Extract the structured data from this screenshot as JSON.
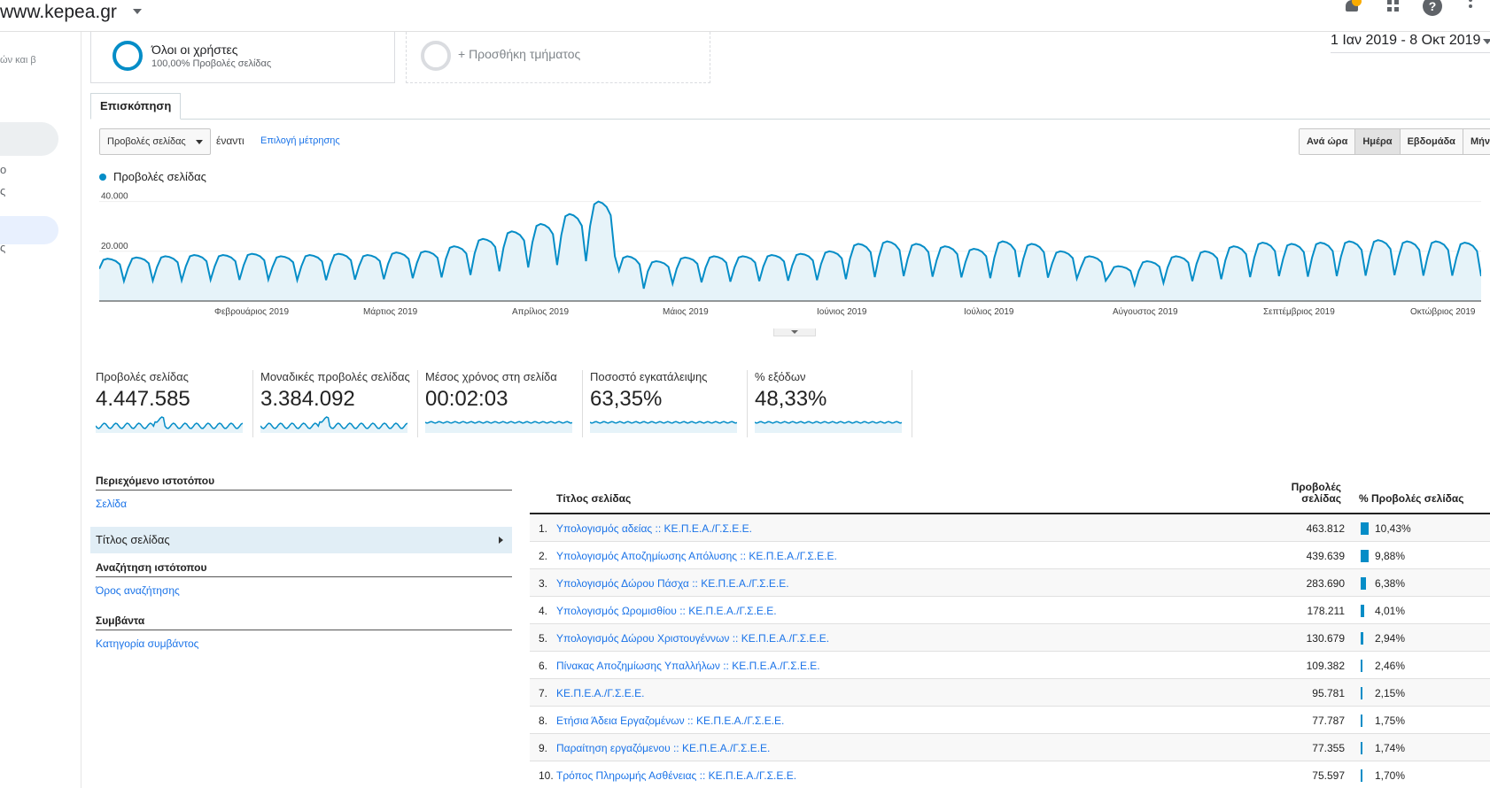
{
  "header": {
    "site": "www.kepea.gr"
  },
  "sidebar": {
    "fragment": "ών και β",
    "frag1": "o",
    "frag2": "ς",
    "frag3": "ς"
  },
  "segments": {
    "all_users": "Όλοι οι χρήστες",
    "all_users_sub": "100,00% Προβολές σελίδας",
    "add_segment": "+ Προσθήκη τμήματος"
  },
  "date_range": "1 Ιαν 2019 - 8 Οκτ 2019",
  "tab": "Επισκόπηση",
  "controls": {
    "metric": "Προβολές σελίδας",
    "vs": "έναντι",
    "choose_metric": "Επιλογή μέτρησης",
    "granularity": [
      "Ανά ώρα",
      "Ημέρα",
      "Εβδομάδα",
      "Μήνας"
    ]
  },
  "chart_data": {
    "type": "area",
    "series": [
      {
        "name": "Προβολές σελίδας",
        "color": "#058dc7"
      }
    ],
    "y_ticks": [
      "40.000",
      "20.000"
    ],
    "ylim": [
      0,
      42000
    ],
    "x_labels": [
      "Φεβρουάριος 2019",
      "Μάρτιος 2019",
      "Απρίλιος 2019",
      "Μάιος 2019",
      "Ιούνιος 2019",
      "Ιούλιος 2019",
      "Αύγουστος 2019",
      "Σεπτέμβριος 2019",
      "Οκτώβριος 2019"
    ],
    "weekly_peak": [
      17000,
      17500,
      18000,
      18500,
      18500,
      19000,
      18000,
      18500,
      19000,
      18500,
      19500,
      20000,
      22000,
      25000,
      28000,
      31000,
      35000,
      40000,
      18000,
      16000,
      17500,
      18000,
      18000,
      18500,
      19000,
      20000,
      23000,
      24000,
      23000,
      22000,
      21000,
      24000,
      23000,
      20000,
      18000,
      14000,
      16000,
      18000,
      20000,
      22000,
      23500,
      23000,
      23500,
      24000,
      24500,
      24000,
      24000,
      23500
    ],
    "weekly_low": [
      8000,
      8200,
      8300,
      8500,
      8500,
      8600,
      8400,
      8400,
      8600,
      8800,
      9200,
      9500,
      10500,
      12000,
      13500,
      14500,
      16000,
      18000,
      5000,
      7000,
      7500,
      7800,
      8000,
      8200,
      8400,
      8800,
      9600,
      10000,
      9800,
      9500,
      9200,
      9600,
      9400,
      9000,
      8200,
      6500,
      7300,
      8000,
      8800,
      9600,
      10000,
      9800,
      10000,
      10200,
      10400,
      10200,
      10200,
      10000
    ]
  },
  "scorecards": [
    {
      "label": "Προβολές σελίδας",
      "value": "4.447.585"
    },
    {
      "label": "Μοναδικές προβολές σελίδας",
      "value": "3.384.092"
    },
    {
      "label": "Μέσος χρόνος στη σελίδα",
      "value": "00:02:03"
    },
    {
      "label": "Ποσοστό εγκατάλειψης",
      "value": "63,35%"
    },
    {
      "label": "% εξόδων",
      "value": "48,33%"
    }
  ],
  "drilldown": {
    "site_content": "Περιεχόμενο ιστοτόπου",
    "page": "Σελίδα",
    "page_title": "Τίτλος σελίδας",
    "site_search": "Αναζήτηση ιστότοπου",
    "search_term": "Όρος αναζήτησης",
    "events": "Συμβάντα",
    "event_category": "Κατηγορία συμβάντος"
  },
  "table": {
    "col_title": "Τίτλος σελίδας",
    "col_pv_1": "Προβολές",
    "col_pv_2": "σελίδας",
    "col_pct": "% Προβολές σελίδας",
    "rows": [
      {
        "num": "1.",
        "title": "Υπολογισμός αδείας :: ΚΕ.Π.Ε.Α./Γ.Σ.Ε.Ε.",
        "pv": "463.812",
        "pct": "10,43%",
        "share": 0.1043
      },
      {
        "num": "2.",
        "title": "Υπολογισμός Αποζημίωσης Απόλυσης :: ΚΕ.Π.Ε.Α./Γ.Σ.Ε.Ε.",
        "pv": "439.639",
        "pct": "9,88%",
        "share": 0.0988
      },
      {
        "num": "3.",
        "title": "Υπολογισμός Δώρου Πάσχα :: ΚΕ.Π.Ε.Α./Γ.Σ.Ε.Ε.",
        "pv": "283.690",
        "pct": "6,38%",
        "share": 0.0638
      },
      {
        "num": "4.",
        "title": "Υπολογισμός Ωρομισθίου :: ΚΕ.Π.Ε.Α./Γ.Σ.Ε.Ε.",
        "pv": "178.211",
        "pct": "4,01%",
        "share": 0.0401
      },
      {
        "num": "5.",
        "title": "Υπολογισμός Δώρου Χριστουγέννων :: ΚΕ.Π.Ε.Α./Γ.Σ.Ε.Ε.",
        "pv": "130.679",
        "pct": "2,94%",
        "share": 0.0294
      },
      {
        "num": "6.",
        "title": "Πίνακας Αποζημίωσης Υπαλλήλων :: ΚΕ.Π.Ε.Α./Γ.Σ.Ε.Ε.",
        "pv": "109.382",
        "pct": "2,46%",
        "share": 0.0246
      },
      {
        "num": "7.",
        "title": "ΚΕ.Π.Ε.Α./Γ.Σ.Ε.Ε.",
        "pv": "95.781",
        "pct": "2,15%",
        "share": 0.0215
      },
      {
        "num": "8.",
        "title": "Ετήσια Άδεια Εργαζομένων :: ΚΕ.Π.Ε.Α./Γ.Σ.Ε.Ε.",
        "pv": "77.787",
        "pct": "1,75%",
        "share": 0.0175
      },
      {
        "num": "9.",
        "title": "Παραίτηση εργαζόμενου :: ΚΕ.Π.Ε.Α./Γ.Σ.Ε.Ε.",
        "pv": "77.355",
        "pct": "1,74%",
        "share": 0.0174
      },
      {
        "num": "10.",
        "title": "Τρόπος Πληρωμής Ασθένειας :: ΚΕ.Π.Ε.Α./Γ.Σ.Ε.Ε.",
        "pv": "75.597",
        "pct": "1,70%",
        "share": 0.017
      }
    ]
  }
}
